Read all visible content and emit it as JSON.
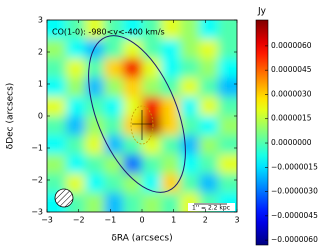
{
  "chart_data": {
    "type": "heatmap",
    "annotation": "CO(1-0): -980<v<-400 km/s",
    "scale_label": "1'' = 2.2 kpc",
    "xlabel": "δRA (arcsecs)",
    "ylabel": "δDec (arcsecs)",
    "colorbar_label": "Jy",
    "colormap": "jet",
    "xlim": [
      -3,
      3
    ],
    "ylim": [
      -3,
      3
    ],
    "xticks": [
      {
        "value": -3,
        "label": "−3"
      },
      {
        "value": -2,
        "label": "−2"
      },
      {
        "value": -1,
        "label": "−1"
      },
      0,
      1,
      2,
      3
    ],
    "yticks": [
      {
        "value": -3,
        "label": "−3"
      },
      {
        "value": -2,
        "label": "−2"
      },
      {
        "value": -1,
        "label": "−1"
      },
      0,
      1,
      2,
      3
    ],
    "clim": [
      -6.3e-06,
      7.6e-06
    ],
    "cticks": [
      {
        "value": -6e-06,
        "label": "−0.0000060"
      },
      {
        "value": -4.5e-06,
        "label": "−0.0000045"
      },
      {
        "value": -3e-06,
        "label": "−0.0000030"
      },
      {
        "value": -1.5e-06,
        "label": "−0.0000015"
      },
      {
        "value": 0,
        "label": "0.0000000"
      },
      {
        "value": 1.5e-06,
        "label": "0.0000015"
      },
      {
        "value": 3e-06,
        "label": "0.0000030"
      },
      {
        "value": 4.5e-06,
        "label": "0.0000045"
      },
      {
        "value": 6e-06,
        "label": "0.0000060"
      }
    ],
    "z": [
      [
        -1e-06,
        0,
        2e-06,
        0,
        -1e-06,
        0,
        2e-06,
        1e-06,
        -1e-06,
        0
      ],
      [
        1e-06,
        -1e-06,
        -2e-06,
        0,
        2e-06,
        0,
        -1e-06,
        1e-06,
        2e-06,
        0
      ],
      [
        0,
        2e-06,
        0,
        3e-06,
        6e-06,
        2e-06,
        -1e-06,
        0,
        1e-06,
        -1e-06
      ],
      [
        -1e-06,
        1e-06,
        -2e-06,
        1e-06,
        3e-06,
        1e-06,
        0,
        2e-06,
        0,
        -2e-06
      ],
      [
        2e-06,
        -1e-06,
        0,
        -1e-06,
        2e-06,
        6e-06,
        3e-06,
        -1e-06,
        2e-06,
        0
      ],
      [
        0,
        -2e-06,
        1e-06,
        0,
        3e-06,
        7e-06,
        3e-06,
        0,
        -1e-06,
        1e-06
      ],
      [
        -1e-06,
        0,
        2e-06,
        -2e-06,
        0,
        2e-06,
        0,
        -2e-06,
        1e-06,
        0
      ],
      [
        1e-06,
        -1e-06,
        0,
        1e-06,
        -3e-06,
        0,
        1e-06,
        -1e-06,
        0,
        2e-06
      ],
      [
        0,
        2e-06,
        -1e-06,
        0,
        1e-06,
        -1e-06,
        3e-06,
        0,
        -2e-06,
        0
      ],
      [
        -1e-06,
        0,
        1e-06,
        -2e-06,
        0,
        1e-06,
        0,
        2e-06,
        0,
        -1e-06
      ]
    ]
  }
}
